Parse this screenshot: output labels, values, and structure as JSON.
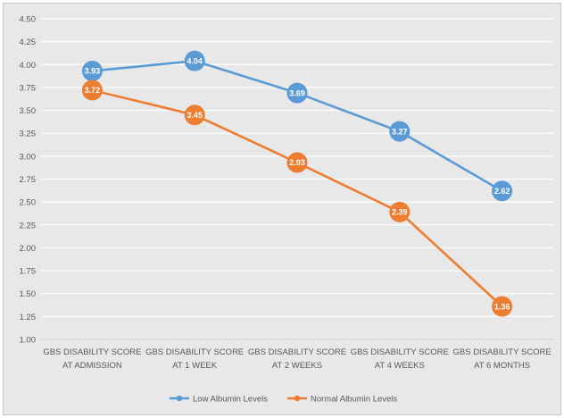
{
  "chart_data": {
    "type": "line",
    "title": "",
    "xlabel": "",
    "ylabel": "",
    "categories": [
      [
        "GBS DISABILITY SCORE",
        "AT ADMISSION"
      ],
      [
        "GBS DISABILITY SCORE",
        "AT 1 WEEK"
      ],
      [
        "GBS DISABILITY SCORE",
        "AT 2 WEEKS"
      ],
      [
        "GBS DISABILITY SCORE",
        "AT 4 WEEKS"
      ],
      [
        "GBS DISABILITY SCORE",
        "AT 6 MONTHS"
      ]
    ],
    "y_ticks": [
      "1.00",
      "1.25",
      "1.50",
      "1.75",
      "2.00",
      "2.25",
      "2.50",
      "2.75",
      "3.00",
      "3.25",
      "3.50",
      "3.75",
      "4.00",
      "4.25",
      "4.50"
    ],
    "ylim": [
      1.0,
      4.5
    ],
    "grid": true,
    "legend_position": "bottom",
    "series": [
      {
        "name": "Low Albumin Levels",
        "color": "#5b9bd5",
        "values": [
          3.93,
          4.04,
          3.69,
          3.27,
          2.62
        ],
        "labels": [
          "3.93",
          "4.04",
          "3.69",
          "3.27",
          "2.62"
        ]
      },
      {
        "name": "Normal Albumin Levels",
        "color": "#ed7d31",
        "values": [
          3.72,
          3.45,
          2.93,
          2.39,
          1.36
        ],
        "labels": [
          "3.72",
          "3.45",
          "2.93",
          "2.39",
          "1.36"
        ]
      }
    ]
  }
}
